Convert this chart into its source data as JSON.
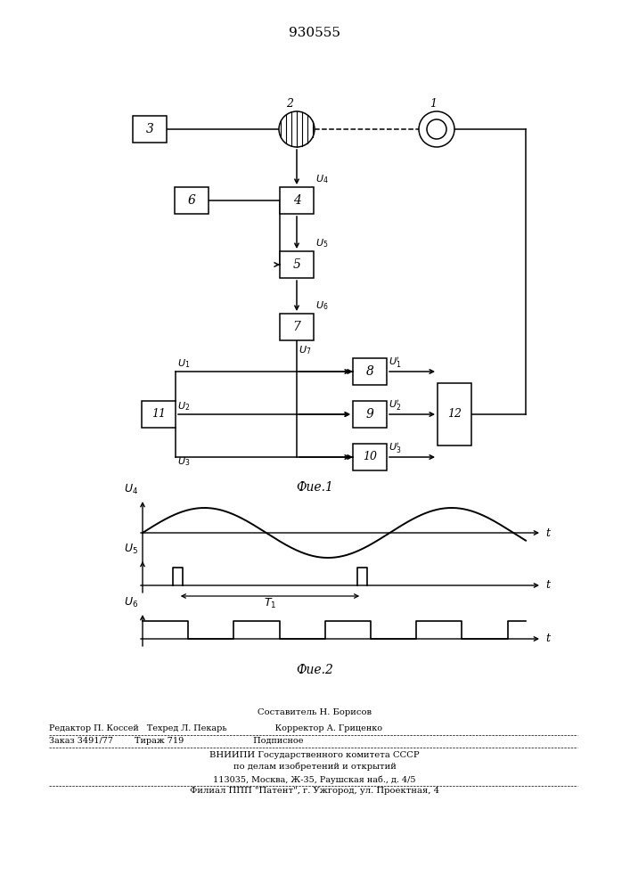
{
  "title": "930555",
  "title_fontsize": 11,
  "bg_color": "#ffffff",
  "fig1_label": "Фие.1",
  "fig2_label": "Фие.2",
  "footer_lines": [
    "Составитель Н. Борисов",
    "Редактор П. Коссей   Техред Л. Пекарь                  Корректор А. Гриценко",
    "Заказ 3491/77        Тираж 719                          Подписное",
    "ВНИИПИ Государственного комитета СССР",
    "по делам изобретений и открытий",
    "113035, Москва, Ж-35, Раушская наб., д. 4/5",
    "Филиал ППП \"Патент\", г. Ужгород, ул. Проектная, 4"
  ]
}
